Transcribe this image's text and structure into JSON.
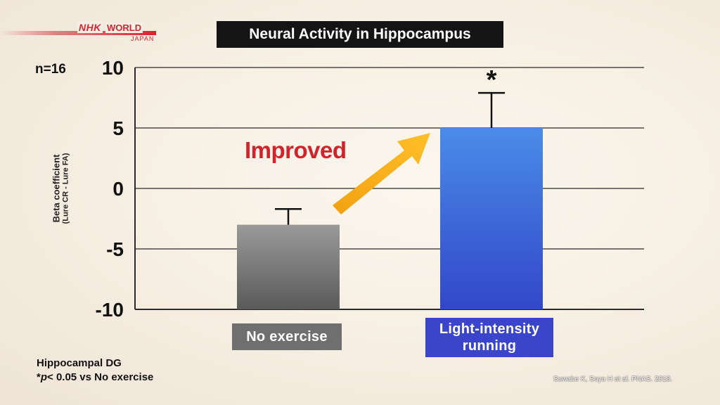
{
  "logo": {
    "brand": "NHK",
    "word": "WORLD",
    "sub": "JAPAN"
  },
  "sample_size": "n=16",
  "annotation": "Improved",
  "significance_marker": "*",
  "footnote": {
    "line1": "Hippocampal DG",
    "line2_prefix": "*",
    "line2_p": "p",
    "line2_rest": "< 0.05 vs No exercise"
  },
  "citation": "Suwabe K, Soya H et al. PNAS. 2018.",
  "colors": {
    "bar_gray": "#7d7d7d",
    "bar_blue": "#3d63e0",
    "arrow": "#f5a712",
    "accent_red": "#d4222b"
  },
  "chart_data": {
    "type": "bar",
    "title": "Neural Activity in Hippocampus",
    "ylabel": "Beta coefficient",
    "ylabel_sub": "(Lure CR - Lure FA)",
    "xlabel": "",
    "categories": [
      "No exercise",
      "Light-intensity running"
    ],
    "values": [
      -3,
      5
    ],
    "error_upper": [
      1.3,
      2.9
    ],
    "ylim": [
      -10,
      10
    ],
    "yticks": [
      10,
      5,
      0,
      -5,
      -10
    ],
    "grid": true,
    "significant": [
      false,
      true
    ]
  }
}
